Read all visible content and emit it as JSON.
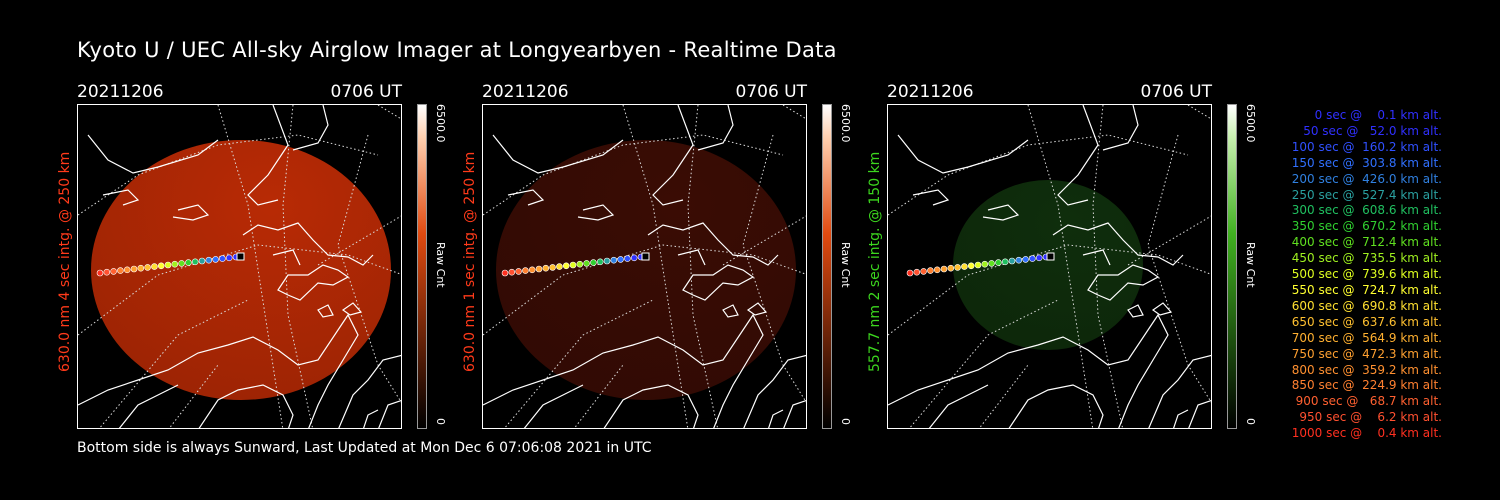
{
  "title": "Kyoto U / UEC All-sky Airglow Imager at Longyearbyen - Realtime Data",
  "footer": "Bottom side is always Sunward, Last Updated at Mon Dec  6 07:06:08 2021 in UTC",
  "panels": [
    {
      "date": "20211206",
      "time": "0706 UT",
      "ylabel": "630.0 nm 4 sec intg. @ 250 km",
      "ylabel_color": "#ff3a1a",
      "cbar_max": "6500.0",
      "cbar_min": "0",
      "cbar_unit": "Raw Cnt",
      "fill_color": "#b82a05",
      "fill_opacity": "0.95"
    },
    {
      "date": "20211206",
      "time": "0706 UT",
      "ylabel": "630.0 nm 1 sec intg. @ 250 km",
      "ylabel_color": "#ff3a1a",
      "cbar_max": "6500.0",
      "cbar_min": "0",
      "cbar_unit": "Raw Cnt",
      "fill_color": "#3a0c04",
      "fill_opacity": "1"
    },
    {
      "date": "20211206",
      "time": "0706 UT",
      "ylabel": "557.7 nm 2 sec intg. @ 150 km",
      "ylabel_color": "#3cd61e",
      "cbar_max": "6500.0",
      "cbar_min": "0",
      "cbar_unit": "Raw Cnt",
      "fill_color": "#0f2e0c",
      "fill_opacity": "1"
    }
  ],
  "legend": [
    {
      "text": "   0 sec @    0.1 km alt.",
      "color": "#3030ff"
    },
    {
      "text": "  50 sec @   52.0 km alt.",
      "color": "#3030ff"
    },
    {
      "text": " 100 sec @  160.2 km alt.",
      "color": "#3050ff"
    },
    {
      "text": " 150 sec @  303.8 km alt.",
      "color": "#3070ff"
    },
    {
      "text": " 200 sec @  426.0 km alt.",
      "color": "#3080e0"
    },
    {
      "text": " 250 sec @  527.4 km alt.",
      "color": "#2aa0a0"
    },
    {
      "text": " 300 sec @  608.6 km alt.",
      "color": "#20c060"
    },
    {
      "text": " 350 sec @  670.2 km alt.",
      "color": "#30d030"
    },
    {
      "text": " 400 sec @  712.4 km alt.",
      "color": "#60e020"
    },
    {
      "text": " 450 sec @  735.5 km alt.",
      "color": "#a0f020"
    },
    {
      "text": " 500 sec @  739.6 km alt.",
      "color": "#e0ff20"
    },
    {
      "text": " 550 sec @  724.7 km alt.",
      "color": "#ffff30"
    },
    {
      "text": " 600 sec @  690.8 km alt.",
      "color": "#ffe030"
    },
    {
      "text": " 650 sec @  637.6 km alt.",
      "color": "#ffc030"
    },
    {
      "text": " 700 sec @  564.9 km alt.",
      "color": "#ffb030"
    },
    {
      "text": " 750 sec @  472.3 km alt.",
      "color": "#ffa030"
    },
    {
      "text": " 800 sec @  359.2 km alt.",
      "color": "#ff9030"
    },
    {
      "text": " 850 sec @  224.9 km alt.",
      "color": "#ff8030"
    },
    {
      "text": " 900 sec @   68.7 km alt.",
      "color": "#ff6030"
    },
    {
      "text": " 950 sec @    6.2 km alt.",
      "color": "#ff5030"
    },
    {
      "text": "1000 sec @    0.4 km alt.",
      "color": "#ff3020"
    }
  ]
}
